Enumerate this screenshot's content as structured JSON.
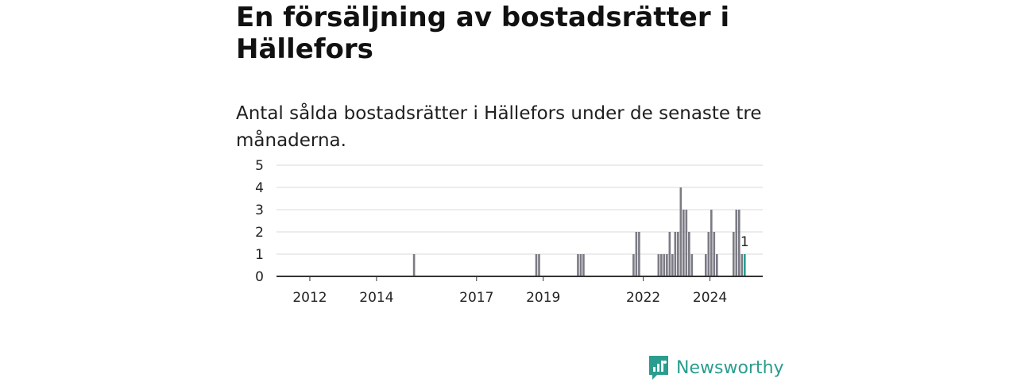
{
  "header": {
    "title": "En försäljning av bostadsrätter i Hällefors",
    "subtitle": "Antal sålda bostadsrätter i Hällefors under de senaste tre månaderna."
  },
  "brand": {
    "name": "Newsworthy",
    "color": "#2a9d8f",
    "icon": "newsworthy-logo-icon"
  },
  "chart_data": {
    "type": "bar",
    "x_unit": "month",
    "x_ticks": [
      "2012",
      "2014",
      "2017",
      "2019",
      "2022",
      "2024"
    ],
    "y_ticks": [
      0,
      1,
      2,
      3,
      4,
      5
    ],
    "ylim": [
      0,
      5
    ],
    "grid": true,
    "bar_color": "#7b7b85",
    "highlight_color": "#2a9d8f",
    "highlight_label": "1",
    "series": [
      {
        "values": [
          {
            "x": "2015-02",
            "y": 1
          },
          {
            "x": "2018-10",
            "y": 1
          },
          {
            "x": "2018-11",
            "y": 1
          },
          {
            "x": "2020-01",
            "y": 1
          },
          {
            "x": "2020-02",
            "y": 1
          },
          {
            "x": "2020-03",
            "y": 1
          },
          {
            "x": "2021-09",
            "y": 1
          },
          {
            "x": "2021-10",
            "y": 2
          },
          {
            "x": "2021-11",
            "y": 2
          },
          {
            "x": "2022-06",
            "y": 1
          },
          {
            "x": "2022-07",
            "y": 1
          },
          {
            "x": "2022-08",
            "y": 1
          },
          {
            "x": "2022-09",
            "y": 1
          },
          {
            "x": "2022-10",
            "y": 2
          },
          {
            "x": "2022-11",
            "y": 1
          },
          {
            "x": "2022-12",
            "y": 2
          },
          {
            "x": "2023-01",
            "y": 2
          },
          {
            "x": "2023-02",
            "y": 4
          },
          {
            "x": "2023-03",
            "y": 3
          },
          {
            "x": "2023-04",
            "y": 3
          },
          {
            "x": "2023-05",
            "y": 2
          },
          {
            "x": "2023-06",
            "y": 1
          },
          {
            "x": "2023-11",
            "y": 1
          },
          {
            "x": "2023-12",
            "y": 2
          },
          {
            "x": "2024-01",
            "y": 3
          },
          {
            "x": "2024-02",
            "y": 2
          },
          {
            "x": "2024-03",
            "y": 1
          },
          {
            "x": "2024-09",
            "y": 2
          },
          {
            "x": "2024-10",
            "y": 3
          },
          {
            "x": "2024-11",
            "y": 3
          },
          {
            "x": "2024-12",
            "y": 1
          },
          {
            "x": "2025-01",
            "y": 1,
            "highlight": true
          }
        ]
      }
    ]
  }
}
